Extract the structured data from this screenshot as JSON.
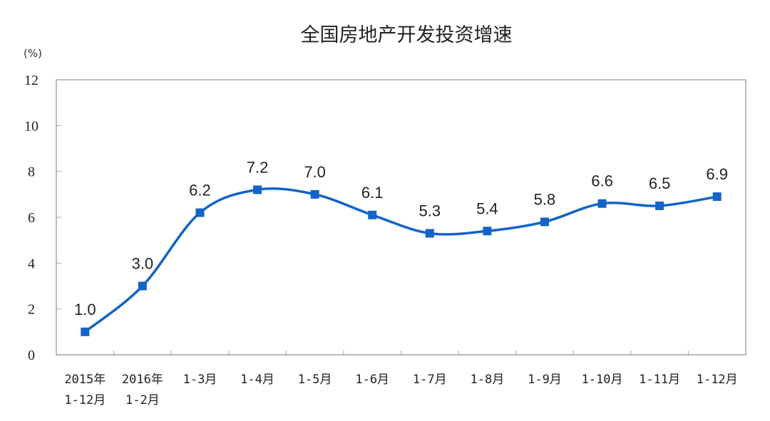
{
  "chart_data": {
    "type": "line",
    "title": "全国房地产开发投资增速",
    "ylabel": "(%)",
    "xlabel": "",
    "ylim": [
      0,
      12
    ],
    "yticks": [
      0,
      2,
      4,
      6,
      8,
      10,
      12
    ],
    "grid": false,
    "legend": null,
    "categories": [
      [
        "2015年",
        "1-12月"
      ],
      [
        "2016年",
        "1-2月"
      ],
      [
        "1-3月"
      ],
      [
        "1-4月"
      ],
      [
        "1-5月"
      ],
      [
        "1-6月"
      ],
      [
        "1-7月"
      ],
      [
        "1-8月"
      ],
      [
        "1-9月"
      ],
      [
        "1-10月"
      ],
      [
        "1-11月"
      ],
      [
        "1-12月"
      ]
    ],
    "series": [
      {
        "name": "全国房地产开发投资增速",
        "color": "#1463c8",
        "marker": "square",
        "values": [
          1.0,
          3.0,
          6.2,
          7.2,
          7.0,
          6.1,
          5.3,
          5.4,
          5.8,
          6.6,
          6.5,
          6.9
        ],
        "labels": [
          "1.0",
          "3.0",
          "6.2",
          "7.2",
          "7.0",
          "6.1",
          "5.3",
          "5.4",
          "5.8",
          "6.6",
          "6.5",
          "6.9"
        ]
      }
    ]
  }
}
